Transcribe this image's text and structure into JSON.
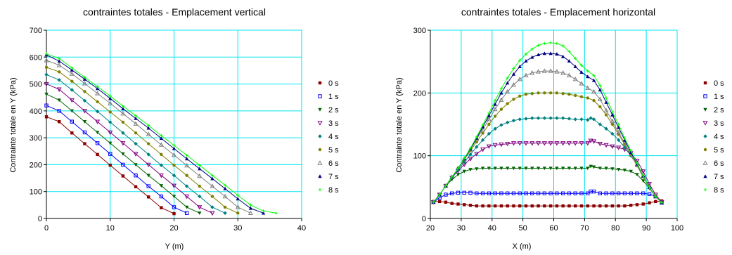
{
  "colors": {
    "grid": "#00e5ee",
    "series": [
      "#8b0000",
      "#0000ff",
      "#006400",
      "#800080",
      "#008080",
      "#808000",
      "#808080",
      "#000080",
      "#00ff00"
    ]
  },
  "legend": [
    "0 s",
    "1 s",
    "2 s",
    "3 s",
    "4 s",
    "5 s",
    "6 s",
    "7 s",
    "8 s"
  ],
  "chart_data": [
    {
      "type": "line",
      "title": "contraintes totales - Emplacement vertical",
      "xlabel": "Y (m)",
      "ylabel": "Contrainte totale en Y (kPa)",
      "xlim": [
        0,
        40
      ],
      "ylim": [
        0,
        700
      ],
      "xticks": [
        "0",
        "10",
        "20",
        "30",
        "40"
      ],
      "yticks": [
        "0",
        "100",
        "200",
        "300",
        "400",
        "500",
        "600",
        "700"
      ],
      "grid": true,
      "legend_position": "right",
      "series": [
        {
          "name": "0 s",
          "x": [
            0,
            2,
            4,
            6,
            8,
            10,
            12,
            14,
            16,
            18,
            20
          ],
          "y": [
            378,
            360,
            318,
            278,
            238,
            198,
            158,
            118,
            80,
            40,
            18
          ]
        },
        {
          "name": "1 s",
          "x": [
            0,
            2,
            4,
            6,
            8,
            10,
            12,
            14,
            16,
            18,
            20,
            22
          ],
          "y": [
            420,
            400,
            360,
            320,
            280,
            240,
            200,
            160,
            120,
            82,
            42,
            20
          ]
        },
        {
          "name": "2 s",
          "x": [
            0,
            2,
            4,
            6,
            8,
            10,
            12,
            14,
            16,
            18,
            20,
            22,
            24
          ],
          "y": [
            462,
            440,
            400,
            360,
            320,
            280,
            240,
            200,
            160,
            122,
            82,
            42,
            20
          ]
        },
        {
          "name": "3 s",
          "x": [
            0,
            2,
            4,
            6,
            8,
            10,
            12,
            14,
            16,
            18,
            20,
            22,
            24,
            26
          ],
          "y": [
            500,
            480,
            440,
            400,
            360,
            320,
            280,
            240,
            200,
            160,
            122,
            82,
            42,
            20
          ]
        },
        {
          "name": "4 s",
          "x": [
            0,
            2,
            4,
            6,
            8,
            10,
            12,
            14,
            16,
            18,
            20,
            22,
            24,
            26,
            28
          ],
          "y": [
            535,
            515,
            478,
            438,
            398,
            358,
            318,
            278,
            238,
            198,
            160,
            120,
            82,
            42,
            20
          ]
        },
        {
          "name": "5 s",
          "x": [
            0,
            2,
            4,
            6,
            8,
            10,
            12,
            14,
            16,
            18,
            20,
            22,
            24,
            26,
            28,
            30
          ],
          "y": [
            562,
            545,
            510,
            472,
            434,
            396,
            358,
            318,
            278,
            238,
            198,
            160,
            120,
            82,
            42,
            20
          ]
        },
        {
          "name": "6 s",
          "x": [
            0,
            2,
            4,
            6,
            8,
            10,
            12,
            14,
            16,
            18,
            20,
            22,
            24,
            26,
            28,
            30,
            32
          ],
          "y": [
            588,
            570,
            538,
            502,
            465,
            428,
            390,
            352,
            313,
            274,
            236,
            197,
            158,
            120,
            82,
            42,
            20
          ]
        },
        {
          "name": "7 s",
          "x": [
            0,
            2,
            4,
            6,
            8,
            10,
            12,
            14,
            16,
            18,
            20,
            22,
            24,
            26,
            28,
            30,
            32,
            34
          ],
          "y": [
            608,
            585,
            552,
            518,
            483,
            446,
            408,
            372,
            336,
            298,
            260,
            222,
            185,
            148,
            111,
            73,
            38,
            20
          ]
        },
        {
          "name": "8 s",
          "x": [
            0,
            2,
            4,
            6,
            8,
            10,
            12,
            14,
            16,
            18,
            20,
            22,
            24,
            26,
            28,
            30,
            32,
            34,
            36
          ],
          "y": [
            612,
            595,
            560,
            525,
            490,
            455,
            418,
            382,
            346,
            308,
            272,
            235,
            198,
            160,
            124,
            86,
            50,
            28,
            20
          ]
        }
      ]
    },
    {
      "type": "line",
      "title": "contraintes totales - Emplacement horizontal",
      "xlabel": "X (m)",
      "ylabel": "Contrainte totale en Y (kPa)",
      "xlim": [
        20,
        100
      ],
      "ylim": [
        0,
        300
      ],
      "xticks": [
        "20",
        "30",
        "40",
        "50",
        "60",
        "70",
        "80",
        "90",
        "100"
      ],
      "yticks": [
        "0",
        "100",
        "200",
        "300"
      ],
      "grid": true,
      "legend_position": "right",
      "series": [
        {
          "name": "0 s",
          "x": [
            21,
            23,
            25,
            27,
            29,
            31,
            33,
            35,
            37,
            39,
            41,
            43,
            45,
            47,
            49,
            51,
            53,
            55,
            57,
            59,
            61,
            63,
            65,
            67,
            69,
            71,
            73,
            75,
            77,
            79,
            81,
            83,
            85,
            87,
            89,
            91,
            93,
            95
          ],
          "y": [
            27,
            27,
            26,
            24,
            23,
            22,
            21,
            20,
            20,
            20,
            20,
            20,
            20,
            20,
            20,
            20,
            20,
            20,
            20,
            20,
            20,
            20,
            20,
            20,
            20,
            20,
            20,
            20,
            20,
            20,
            20,
            20,
            21,
            22,
            23,
            25,
            27,
            28
          ]
        },
        {
          "name": "1 s",
          "x": [
            21,
            23,
            25,
            27,
            29,
            31,
            33,
            35,
            37,
            39,
            41,
            43,
            45,
            47,
            49,
            51,
            53,
            55,
            57,
            59,
            61,
            63,
            65,
            67,
            69,
            71,
            72,
            73,
            75,
            77,
            79,
            81,
            83,
            85,
            87,
            89,
            91,
            93,
            95
          ],
          "y": [
            26,
            33,
            38,
            40,
            41,
            41,
            41,
            40,
            40,
            40,
            40,
            40,
            40,
            40,
            40,
            40,
            40,
            40,
            40,
            40,
            40,
            40,
            40,
            40,
            40,
            40,
            43,
            43,
            40,
            40,
            40,
            40,
            40,
            40,
            40,
            40,
            39,
            35,
            25
          ]
        },
        {
          "name": "2 s",
          "x": [
            21,
            23,
            25,
            27,
            29,
            31,
            33,
            35,
            37,
            39,
            41,
            43,
            45,
            47,
            49,
            51,
            53,
            55,
            57,
            59,
            61,
            63,
            65,
            67,
            69,
            71,
            72,
            73,
            75,
            77,
            79,
            81,
            83,
            85,
            87,
            89,
            91,
            93,
            95
          ],
          "y": [
            26,
            38,
            52,
            62,
            70,
            75,
            78,
            79,
            80,
            80,
            80,
            80,
            80,
            80,
            80,
            80,
            80,
            80,
            80,
            80,
            80,
            80,
            80,
            80,
            80,
            80,
            83,
            82,
            80,
            80,
            79,
            78,
            77,
            75,
            70,
            60,
            48,
            35,
            25
          ]
        },
        {
          "name": "3 s",
          "x": [
            21,
            23,
            25,
            27,
            29,
            31,
            33,
            35,
            37,
            39,
            41,
            43,
            45,
            47,
            49,
            51,
            53,
            55,
            57,
            59,
            61,
            63,
            65,
            67,
            69,
            71,
            72,
            73,
            75,
            77,
            79,
            81,
            83,
            85,
            87,
            89,
            91,
            93,
            95
          ],
          "y": [
            26,
            38,
            52,
            65,
            76,
            86,
            95,
            103,
            110,
            115,
            117,
            118,
            119,
            120,
            120,
            120,
            120,
            120,
            120,
            120,
            120,
            120,
            120,
            120,
            120,
            120,
            124,
            123,
            119,
            117,
            115,
            113,
            110,
            104,
            92,
            75,
            55,
            38,
            26
          ]
        },
        {
          "name": "4 s",
          "x": [
            21,
            23,
            25,
            27,
            29,
            31,
            33,
            35,
            37,
            39,
            41,
            43,
            45,
            47,
            49,
            51,
            53,
            55,
            57,
            59,
            61,
            63,
            65,
            67,
            69,
            71,
            72,
            73,
            75,
            77,
            79,
            81,
            83,
            85,
            87,
            89,
            91,
            93,
            95
          ],
          "y": [
            26,
            38,
            52,
            65,
            78,
            90,
            102,
            114,
            125,
            135,
            143,
            149,
            153,
            156,
            158,
            159,
            160,
            160,
            160,
            160,
            160,
            160,
            159,
            158,
            158,
            157,
            160,
            158,
            150,
            143,
            135,
            125,
            113,
            100,
            85,
            67,
            50,
            35,
            25
          ]
        },
        {
          "name": "5 s",
          "x": [
            21,
            23,
            25,
            27,
            29,
            31,
            33,
            35,
            37,
            39,
            41,
            43,
            45,
            47,
            49,
            51,
            53,
            55,
            57,
            59,
            61,
            63,
            65,
            67,
            69,
            71,
            73,
            75,
            77,
            79,
            81,
            83,
            85,
            87,
            89,
            91,
            93,
            95
          ],
          "y": [
            26,
            38,
            52,
            66,
            80,
            94,
            108,
            122,
            136,
            150,
            163,
            174,
            183,
            190,
            195,
            198,
            199,
            200,
            200,
            200,
            200,
            199,
            198,
            196,
            194,
            192,
            188,
            178,
            165,
            150,
            134,
            118,
            101,
            84,
            66,
            49,
            35,
            25
          ]
        },
        {
          "name": "6 s",
          "x": [
            21,
            23,
            25,
            27,
            29,
            31,
            33,
            35,
            37,
            39,
            41,
            43,
            45,
            47,
            49,
            51,
            53,
            55,
            57,
            59,
            61,
            63,
            65,
            67,
            69,
            71,
            73,
            75,
            77,
            79,
            81,
            83,
            85,
            87,
            89,
            91,
            93,
            95
          ],
          "y": [
            26,
            38,
            52,
            66,
            80,
            95,
            110,
            126,
            142,
            158,
            174,
            189,
            202,
            213,
            222,
            228,
            232,
            234,
            235,
            235,
            234,
            232,
            228,
            222,
            215,
            208,
            202,
            190,
            172,
            155,
            137,
            120,
            102,
            85,
            67,
            50,
            35,
            25
          ]
        },
        {
          "name": "7 s",
          "x": [
            21,
            23,
            25,
            27,
            29,
            31,
            33,
            35,
            37,
            39,
            41,
            43,
            45,
            47,
            49,
            51,
            53,
            55,
            57,
            59,
            61,
            63,
            65,
            67,
            69,
            71,
            73,
            75,
            77,
            79,
            81,
            83,
            85,
            87,
            89,
            91,
            93,
            95
          ],
          "y": [
            26,
            38,
            52,
            66,
            80,
            95,
            111,
            128,
            146,
            164,
            182,
            200,
            216,
            230,
            242,
            251,
            257,
            261,
            263,
            263,
            262,
            258,
            251,
            242,
            233,
            226,
            220,
            205,
            185,
            165,
            145,
            125,
            105,
            87,
            68,
            50,
            35,
            25
          ]
        },
        {
          "name": "8 s",
          "x": [
            21,
            23,
            25,
            27,
            29,
            31,
            33,
            35,
            37,
            39,
            41,
            43,
            45,
            47,
            49,
            51,
            53,
            55,
            57,
            59,
            61,
            63,
            65,
            67,
            69,
            71,
            73,
            75,
            77,
            79,
            81,
            83,
            85,
            87,
            89,
            91,
            93,
            95
          ],
          "y": [
            26,
            38,
            52,
            66,
            80,
            96,
            112,
            130,
            149,
            168,
            188,
            207,
            224,
            239,
            252,
            262,
            270,
            276,
            279,
            280,
            279,
            275,
            266,
            255,
            244,
            235,
            228,
            212,
            192,
            170,
            150,
            128,
            108,
            88,
            68,
            50,
            35,
            25
          ]
        }
      ]
    }
  ]
}
